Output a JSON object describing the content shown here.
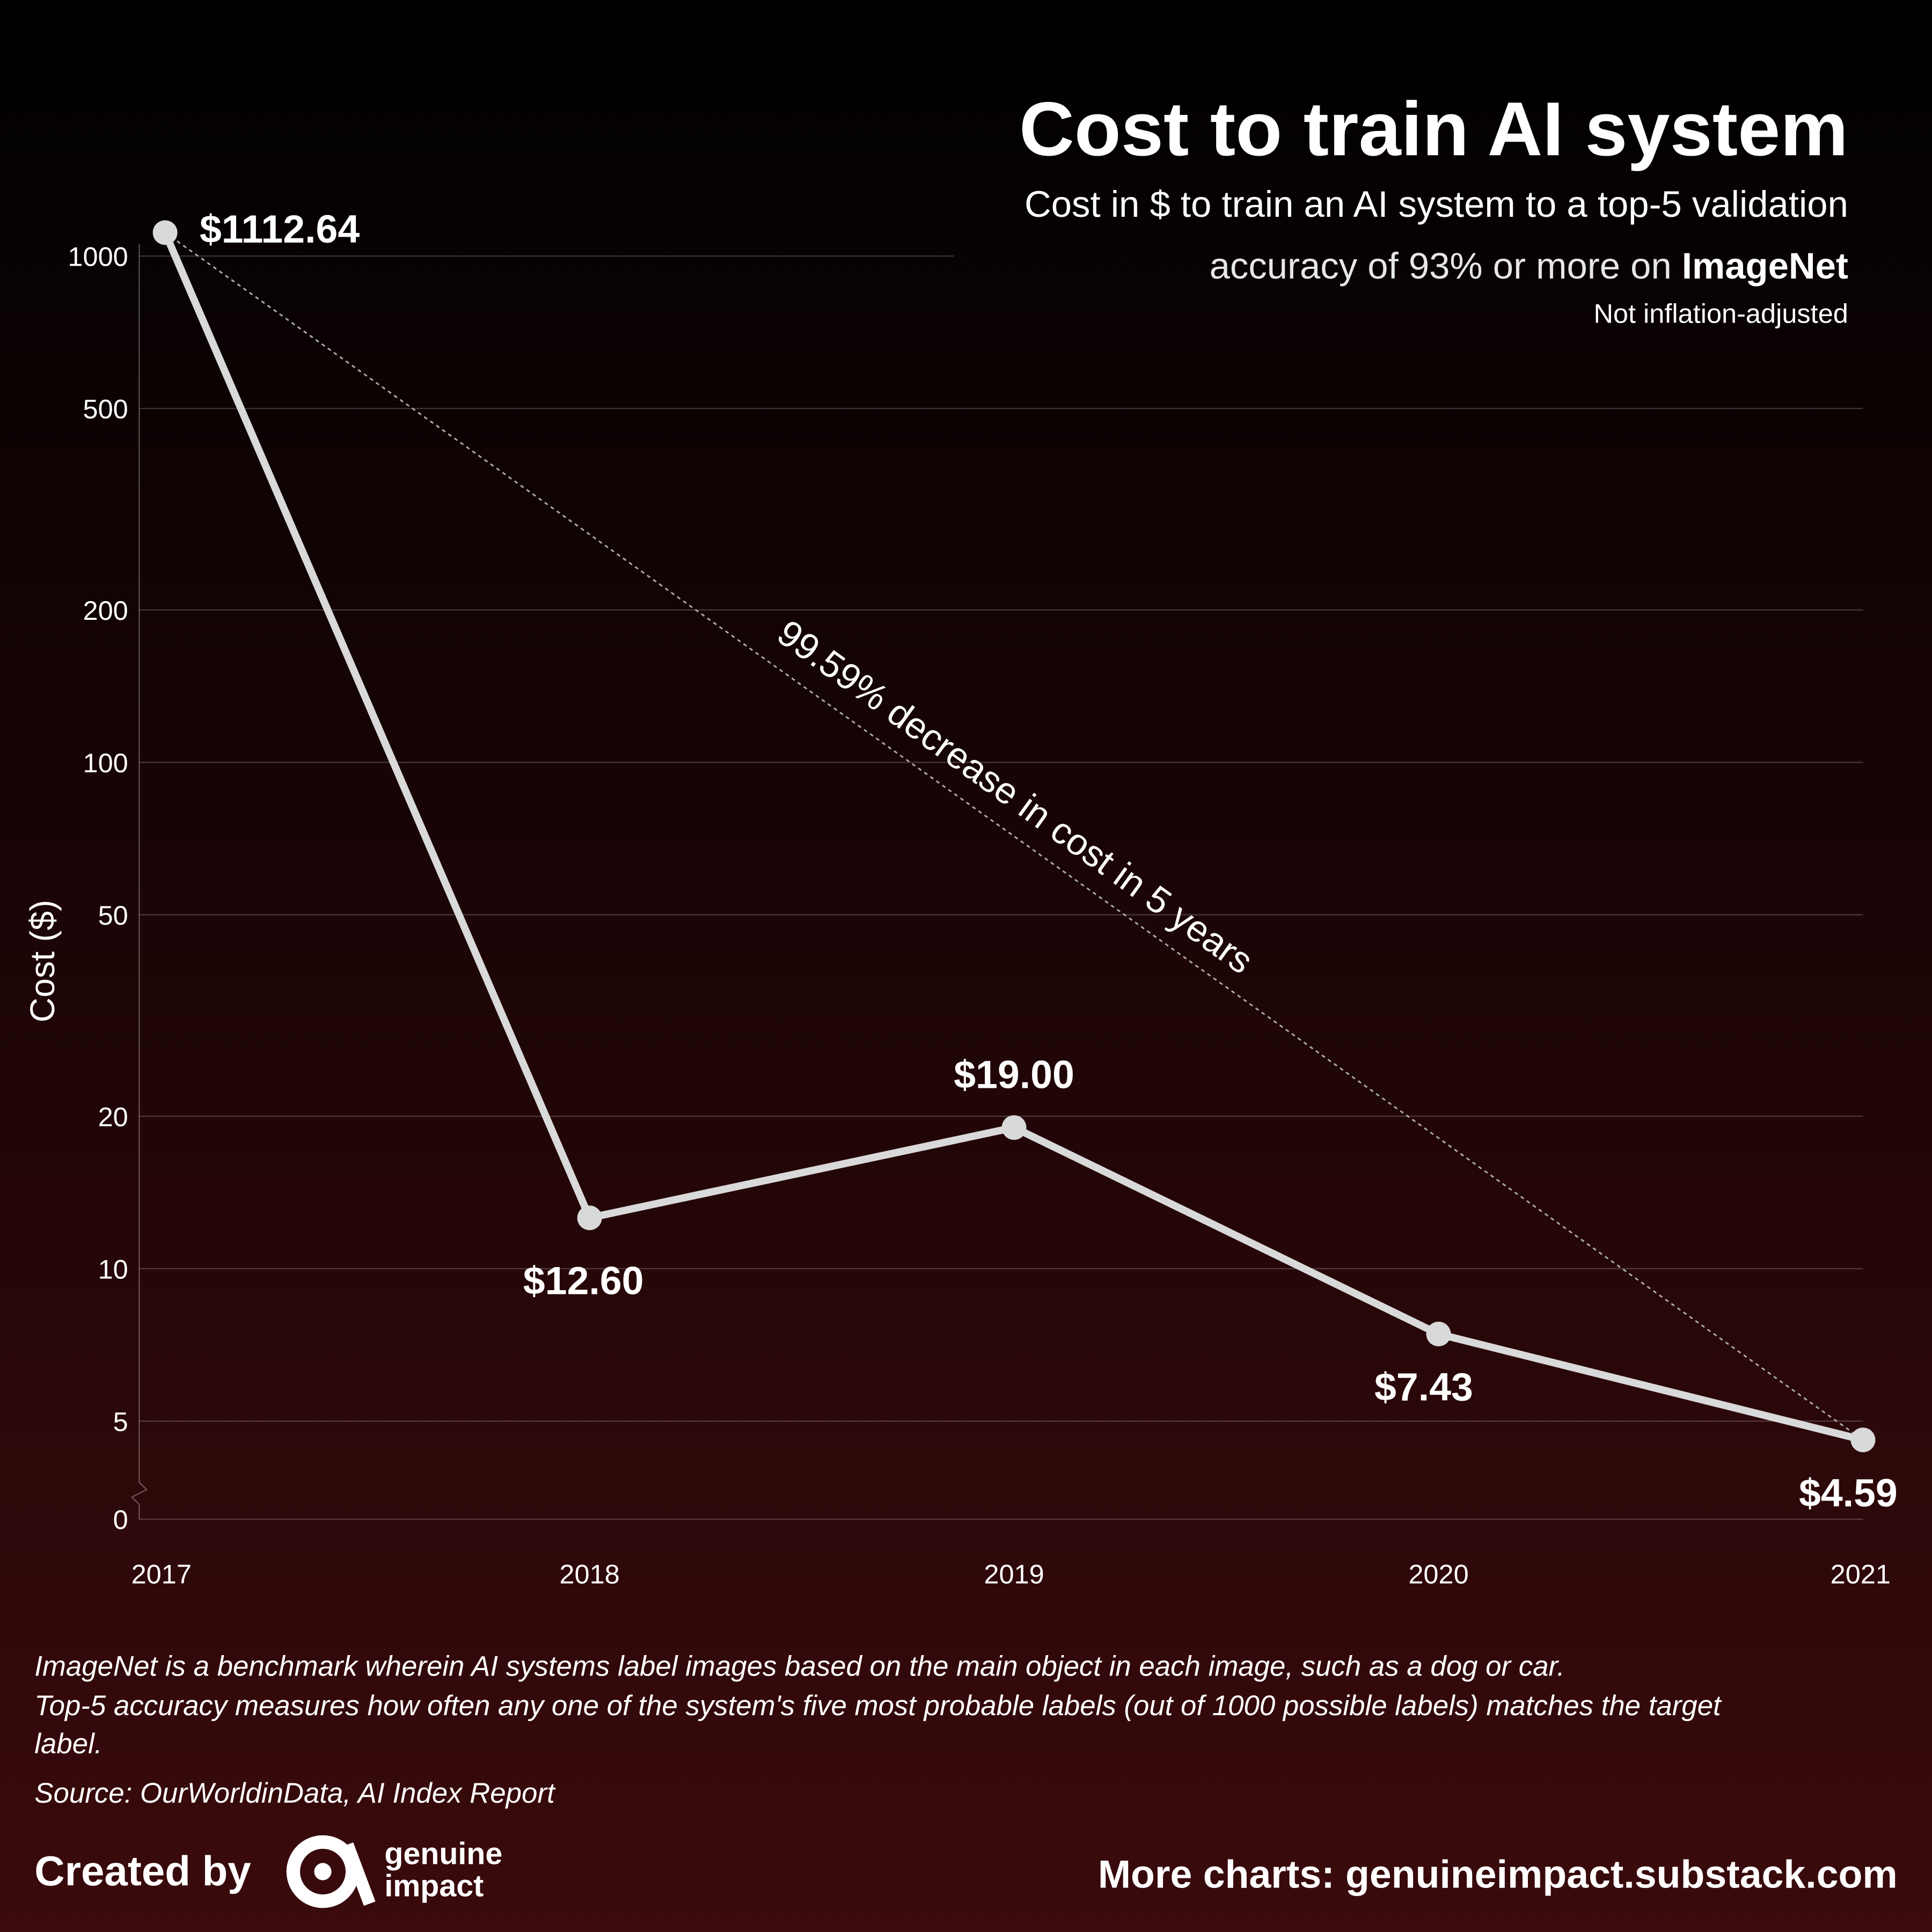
{
  "chart_data": {
    "type": "line",
    "title": "Cost to train AI system",
    "subtitle_line1": "Cost in $ to train an AI system to a top-5 validation",
    "subtitle_line2": "accuracy of 93% or more on",
    "subtitle_bold": "ImageNet",
    "note": "Not inflation-adjusted",
    "y_label": "Cost ($)",
    "categories": [
      "2017",
      "2018",
      "2019",
      "2020",
      "2021"
    ],
    "values": [
      1112.64,
      12.6,
      19,
      7.43,
      4.59
    ],
    "value_labels": [
      "$1112.64",
      "$12.60",
      "$19.00",
      "$7.43",
      "$4.59"
    ],
    "color": "#d9d9d9",
    "log_scale": true,
    "grid": true,
    "ylim": [
      3.2,
      1250
    ],
    "yticks": [
      0,
      5,
      10,
      20,
      50,
      100,
      200,
      500,
      1000
    ],
    "annotation": "99.59% decrease in cost in 5 years",
    "footnotes": [
      "ImageNet is a benchmark wherein AI systems label images based on the main object in each image, such as a dog or car.",
      "Top-5 accuracy measures how often any one of the system's five most probable labels (out of 1000 possible labels) matches the target",
      "label."
    ],
    "source": "Source: OurWorldinData, AI Index Report",
    "created_by": "Created by",
    "logo_line1": "genuine",
    "logo_line2": "impact",
    "more_charts": "More charts: genuineimpact.substack.com"
  }
}
